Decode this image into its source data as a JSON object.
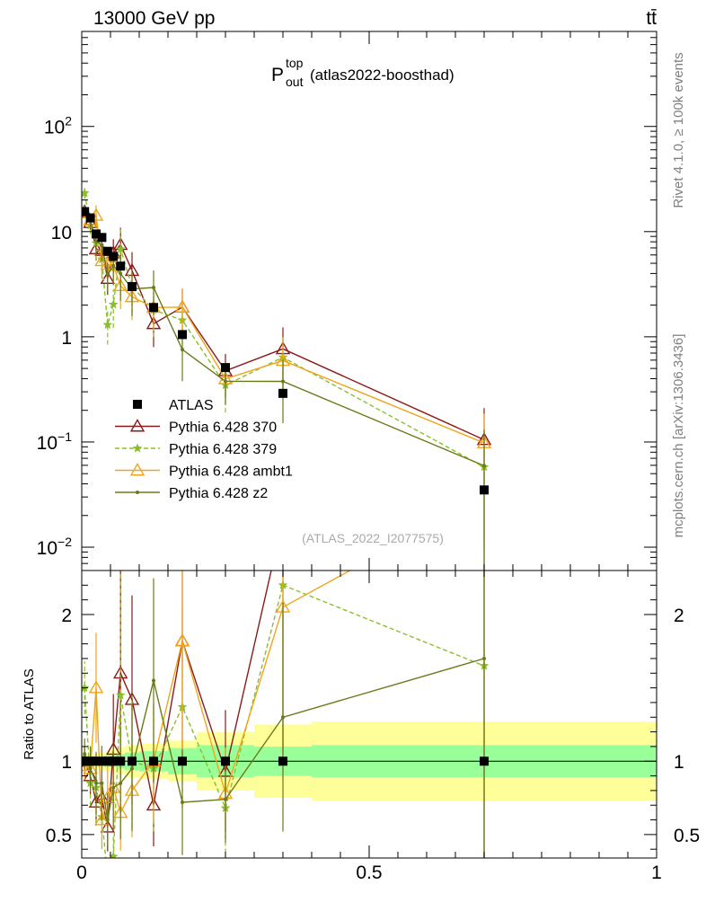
{
  "header": {
    "beam": "13000 GeV pp",
    "process": "tt̄"
  },
  "side_labels": {
    "rivet": "Rivet 4.1.0, ≥ 100k events",
    "site": "mcplots.cern.ch [arXiv:1306.3436]"
  },
  "chart_data": {
    "type": "line",
    "title_main": "P",
    "title_sup": "top",
    "title_sub": "out",
    "title_rest": "(atlas2022-boosthad)",
    "analysis_id": "(ATLAS_2022_I2077575)",
    "xlim": [
      0,
      1
    ],
    "ylim": [
      0.006,
      800
    ],
    "ratio_ylim": [
      0.34,
      2.3
    ],
    "ratio_ylabel": "Ratio to ATLAS",
    "x_ticks": [
      {
        "v": 0,
        "label": "0"
      },
      {
        "v": 0.5,
        "label": "0.5"
      },
      {
        "v": 1,
        "label": "1"
      }
    ],
    "y_ticks": [
      {
        "v": 0.01,
        "base": "10",
        "exp": "−2"
      },
      {
        "v": 0.1,
        "base": "10",
        "exp": "−1"
      },
      {
        "v": 1,
        "base": "1",
        "exp": ""
      },
      {
        "v": 10,
        "base": "10",
        "exp": ""
      },
      {
        "v": 100,
        "base": "10",
        "exp": "2"
      }
    ],
    "ratio_ticks": [
      {
        "v": 0.5,
        "label": "0.5"
      },
      {
        "v": 1,
        "label": "1"
      },
      {
        "v": 2,
        "label": "2"
      }
    ],
    "bands": {
      "edges": [
        0,
        0.01,
        0.02,
        0.03,
        0.04,
        0.05,
        0.06,
        0.075,
        0.1,
        0.15,
        0.2,
        0.3,
        0.4,
        1.0
      ],
      "inner": [
        0.04,
        0.03,
        0.03,
        0.03,
        0.04,
        0.04,
        0.05,
        0.06,
        0.07,
        0.09,
        0.11,
        0.1,
        0.11
      ],
      "outer": [
        0.05,
        0.05,
        0.05,
        0.06,
        0.07,
        0.08,
        0.09,
        0.11,
        0.12,
        0.14,
        0.2,
        0.25,
        0.27
      ]
    },
    "data": {
      "name": "ATLAS",
      "x": [
        0.005,
        0.015,
        0.025,
        0.035,
        0.045,
        0.055,
        0.0675,
        0.0875,
        0.125,
        0.175,
        0.25,
        0.35,
        0.7
      ],
      "y": [
        15.5,
        13.5,
        9.5,
        8.8,
        6.5,
        5.8,
        4.7,
        3.0,
        1.9,
        1.05,
        0.51,
        0.29,
        0.035
      ]
    },
    "series": [
      {
        "name": "Pythia 6.428 370",
        "color": "#8b1a1a",
        "marker": "triangle-open",
        "dash": "",
        "ratio": [
          1.0,
          0.9,
          0.72,
          0.75,
          0.55,
          1.08,
          1.6,
          1.42,
          0.7,
          1.82,
          0.93,
          2.65,
          3.0
        ],
        "err": [
          0.1,
          0.14,
          0.22,
          0.25,
          0.3,
          0.35,
          0.45,
          0.5,
          0.4,
          0.5,
          0.45,
          0.6,
          1.0
        ]
      },
      {
        "name": "Pythia 6.428 379",
        "color": "#8abf2a",
        "marker": "star",
        "dash": "5,3",
        "ratio": [
          1.5,
          0.85,
          0.82,
          0.62,
          0.2,
          0.35,
          1.45,
          1.0,
          0.95,
          1.37,
          0.68,
          2.2,
          1.65
        ],
        "err": [
          0.12,
          0.18,
          0.3,
          0.35,
          0.35,
          0.4,
          0.6,
          0.45,
          0.45,
          0.5,
          0.45,
          0.6,
          0.8
        ]
      },
      {
        "name": "Pythia 6.428 ambt1",
        "color": "#f0a51a",
        "marker": "triangle-open",
        "dash": "",
        "ratio": [
          0.97,
          0.95,
          1.5,
          0.6,
          0.75,
          0.82,
          0.65,
          0.8,
          1.0,
          1.82,
          0.78,
          2.05,
          2.8
        ],
        "err": [
          0.1,
          0.15,
          0.25,
          0.3,
          0.3,
          0.35,
          0.4,
          0.4,
          0.4,
          0.5,
          0.4,
          0.55,
          0.9
        ]
      },
      {
        "name": "Pythia 6.428 z2",
        "color": "#6b7a1a",
        "marker": "dot",
        "dash": "",
        "ratio": [
          1.05,
          0.95,
          0.85,
          0.85,
          0.6,
          0.82,
          0.85,
          0.95,
          1.55,
          0.72,
          0.74,
          1.3,
          1.7
        ],
        "err": [
          0.1,
          0.16,
          0.25,
          0.3,
          0.3,
          0.35,
          0.45,
          0.45,
          0.45,
          0.5,
          0.4,
          0.6,
          1.2
        ]
      }
    ]
  }
}
